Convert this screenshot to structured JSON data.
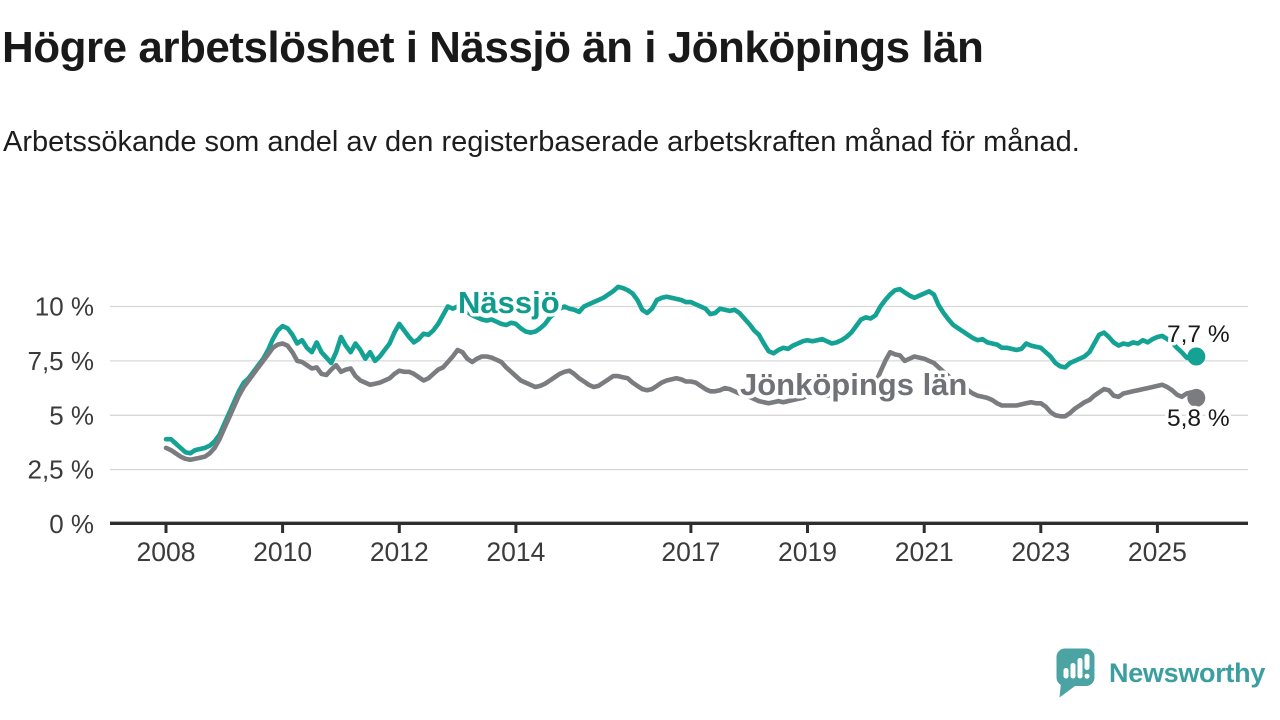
{
  "title": "Högre arbetslöshet i Nässjö än i Jönköpings län",
  "subtitle": "Arbetssökande som andel av den registerbaserade arbetskraften månad för månad.",
  "logo": {
    "text": "Newsworthy",
    "icon": "newsworthy-speech-bubble-bar-chart-icon",
    "icon_color": "#4ba3a3",
    "text_color": "#3b9fa1"
  },
  "chart_data": {
    "type": "line",
    "title": "Högre arbetslöshet i Nässjö än i Jönköpings län",
    "unit": "%",
    "frequency": "monthly",
    "x_start": "2008-01",
    "x_end": "2025-09",
    "grid": "horizontal",
    "legend_position": "inline-labels",
    "y_axis": {
      "ticks": [
        0,
        2.5,
        5,
        7.5,
        10
      ],
      "labels": [
        "0 %",
        "2,5 %",
        "5 %",
        "7,5 %",
        "10 %"
      ],
      "range": [
        0,
        11.3
      ]
    },
    "x_axis": {
      "tick_years": [
        2008,
        2010,
        2012,
        2014,
        2017,
        2019,
        2021,
        2023,
        2025
      ],
      "tick_labels": [
        "2008",
        "2010",
        "2012",
        "2014",
        "2017",
        "2019",
        "2021",
        "2023",
        "2025"
      ]
    },
    "style": {
      "grid_color": "#d8d8d8",
      "axis_color": "#2e2e2e",
      "axis_text_color": "#3b3b3b",
      "end_label_color": "#1a1a1a"
    },
    "series": [
      {
        "name": "Nässjö",
        "color": "#14a295",
        "label_color": "#0f9c8f",
        "end_label": "7,7 %",
        "end_value": 7.7,
        "values": [
          3.9,
          3.9,
          3.7,
          3.5,
          3.3,
          3.25,
          3.4,
          3.45,
          3.5,
          3.6,
          3.8,
          4.1,
          4.6,
          5.1,
          5.6,
          6.1,
          6.5,
          6.7,
          7.0,
          7.3,
          7.6,
          8.0,
          8.5,
          8.9,
          9.1,
          9.0,
          8.7,
          8.3,
          8.45,
          8.1,
          7.9,
          8.35,
          7.9,
          7.65,
          7.4,
          7.9,
          8.6,
          8.2,
          7.9,
          8.3,
          8.0,
          7.6,
          7.9,
          7.5,
          7.7,
          8.0,
          8.3,
          8.8,
          9.2,
          8.9,
          8.6,
          8.35,
          8.5,
          8.75,
          8.7,
          8.9,
          9.2,
          9.6,
          10.0,
          9.9,
          10.0,
          9.9,
          9.75,
          9.6,
          9.5,
          9.4,
          9.35,
          9.4,
          9.3,
          9.2,
          9.15,
          9.25,
          9.2,
          9.0,
          8.85,
          8.8,
          8.85,
          9.0,
          9.2,
          9.5,
          9.7,
          9.9,
          10.0,
          9.9,
          9.85,
          9.75,
          10.0,
          10.1,
          10.2,
          10.3,
          10.4,
          10.55,
          10.7,
          10.9,
          10.85,
          10.75,
          10.6,
          10.3,
          9.85,
          9.7,
          9.9,
          10.3,
          10.4,
          10.45,
          10.4,
          10.35,
          10.3,
          10.2,
          10.2,
          10.1,
          10.0,
          9.9,
          9.65,
          9.7,
          9.9,
          9.85,
          9.8,
          9.85,
          9.7,
          9.45,
          9.2,
          8.9,
          8.7,
          8.3,
          7.95,
          7.85,
          8.0,
          8.1,
          8.05,
          8.2,
          8.3,
          8.4,
          8.45,
          8.4,
          8.45,
          8.5,
          8.4,
          8.3,
          8.35,
          8.45,
          8.6,
          8.8,
          9.1,
          9.4,
          9.5,
          9.45,
          9.6,
          10.0,
          10.3,
          10.55,
          10.75,
          10.8,
          10.65,
          10.5,
          10.4,
          10.5,
          10.6,
          10.7,
          10.55,
          10.05,
          9.7,
          9.4,
          9.15,
          9.0,
          8.85,
          8.7,
          8.55,
          8.45,
          8.5,
          8.35,
          8.3,
          8.25,
          8.1,
          8.1,
          8.05,
          8.0,
          8.05,
          8.3,
          8.2,
          8.15,
          8.1,
          7.9,
          7.7,
          7.4,
          7.25,
          7.2,
          7.4,
          7.5,
          7.6,
          7.7,
          7.9,
          8.3,
          8.7,
          8.8,
          8.6,
          8.35,
          8.2,
          8.3,
          8.25,
          8.35,
          8.3,
          8.45,
          8.35,
          8.5,
          8.6,
          8.65,
          8.5,
          8.35,
          8.1,
          7.9,
          7.65,
          7.6,
          7.7
        ]
      },
      {
        "name": "Jönköpings län",
        "color": "#7b7c80",
        "label_color": "#717277",
        "end_label": "5,8 %",
        "end_value": 5.8,
        "values": [
          3.5,
          3.4,
          3.25,
          3.1,
          3.0,
          2.95,
          3.0,
          3.05,
          3.1,
          3.25,
          3.5,
          3.9,
          4.4,
          4.9,
          5.4,
          5.9,
          6.3,
          6.6,
          6.9,
          7.2,
          7.5,
          7.8,
          8.1,
          8.25,
          8.3,
          8.2,
          7.9,
          7.5,
          7.45,
          7.3,
          7.15,
          7.2,
          6.9,
          6.85,
          7.1,
          7.3,
          7.0,
          7.1,
          7.15,
          6.8,
          6.6,
          6.5,
          6.4,
          6.45,
          6.5,
          6.6,
          6.7,
          6.9,
          7.05,
          7.0,
          7.0,
          6.9,
          6.75,
          6.6,
          6.7,
          6.9,
          7.1,
          7.2,
          7.45,
          7.7,
          8.0,
          7.9,
          7.6,
          7.45,
          7.6,
          7.7,
          7.7,
          7.65,
          7.55,
          7.45,
          7.2,
          7.0,
          6.8,
          6.6,
          6.5,
          6.4,
          6.3,
          6.35,
          6.45,
          6.6,
          6.75,
          6.9,
          7.0,
          7.05,
          6.9,
          6.7,
          6.55,
          6.4,
          6.3,
          6.35,
          6.5,
          6.65,
          6.8,
          6.8,
          6.75,
          6.7,
          6.5,
          6.35,
          6.2,
          6.15,
          6.2,
          6.35,
          6.5,
          6.6,
          6.65,
          6.7,
          6.65,
          6.55,
          6.55,
          6.5,
          6.35,
          6.2,
          6.1,
          6.1,
          6.15,
          6.25,
          6.2,
          6.1,
          6.0,
          5.95,
          5.85,
          5.75,
          5.65,
          5.6,
          5.55,
          5.6,
          5.65,
          5.6,
          5.65,
          5.7,
          5.75,
          5.8,
          5.9,
          5.95,
          6.0,
          5.95,
          5.9,
          5.95,
          6.0,
          6.05,
          6.1,
          6.15,
          6.2,
          6.2,
          6.2,
          6.25,
          6.5,
          7.0,
          7.5,
          7.9,
          7.8,
          7.75,
          7.5,
          7.6,
          7.7,
          7.65,
          7.6,
          7.5,
          7.4,
          7.2,
          7.0,
          6.8,
          6.6,
          6.5,
          6.4,
          6.15,
          6.0,
          5.9,
          5.85,
          5.8,
          5.7,
          5.55,
          5.45,
          5.45,
          5.45,
          5.45,
          5.5,
          5.55,
          5.6,
          5.55,
          5.55,
          5.4,
          5.15,
          5.0,
          4.95,
          4.95,
          5.1,
          5.3,
          5.45,
          5.6,
          5.7,
          5.9,
          6.05,
          6.2,
          6.15,
          5.9,
          5.85,
          6.0,
          6.05,
          6.1,
          6.15,
          6.2,
          6.25,
          6.3,
          6.35,
          6.4,
          6.3,
          6.15,
          5.95,
          5.85,
          6.0,
          6.05,
          5.8
        ]
      }
    ]
  }
}
